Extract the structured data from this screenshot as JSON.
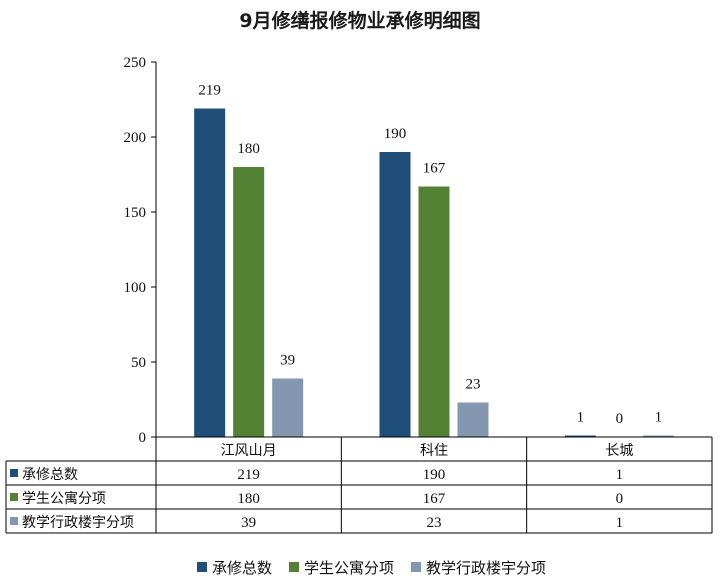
{
  "chart_data": {
    "type": "bar",
    "title": "9月修缮报修物业承修明细图",
    "categories": [
      "江风山月",
      "科住",
      "长城"
    ],
    "series": [
      {
        "name": "承修总数",
        "values": [
          219,
          190,
          1
        ],
        "color": "#1F4E79"
      },
      {
        "name": "学生公寓分项",
        "values": [
          180,
          167,
          0
        ],
        "color": "#548235"
      },
      {
        "name": "教学行政楼宇分项",
        "values": [
          39,
          23,
          1
        ],
        "color": "#8497B0"
      }
    ],
    "ylim": [
      0,
      250
    ],
    "yticks": [
      0,
      50,
      100,
      150,
      200,
      250
    ],
    "legend_position": "bottom",
    "data_table": true,
    "grid": false
  }
}
